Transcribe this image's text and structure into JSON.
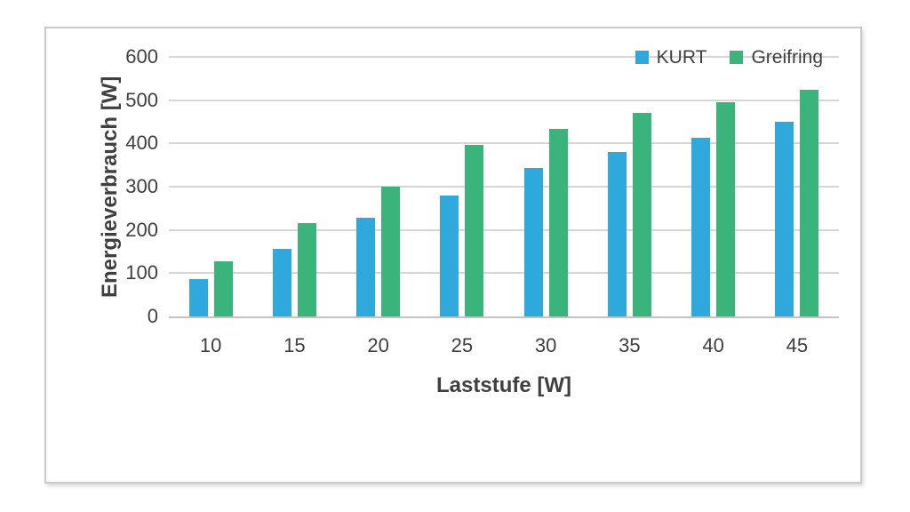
{
  "chart_data": {
    "type": "bar",
    "title": "",
    "categories": [
      "10",
      "15",
      "20",
      "25",
      "30",
      "35",
      "40",
      "45"
    ],
    "series": [
      {
        "name": "KURT",
        "color": "#2FA9DC",
        "values": [
          87,
          156,
          228,
          279,
          344,
          381,
          414,
          450
        ]
      },
      {
        "name": "Greifring",
        "color": "#3BB47B",
        "values": [
          127,
          216,
          300,
          397,
          434,
          470,
          496,
          523
        ]
      }
    ],
    "xlabel": "Laststufe [W]",
    "ylabel": "Energieverbrauch [W]",
    "ylim": [
      0,
      600
    ],
    "yticks": [
      0,
      100,
      200,
      300,
      400,
      500,
      600
    ],
    "grid": true,
    "legend_position": "top-right"
  },
  "colors": {
    "text": "#3F3F3F",
    "gridline": "#D6D6D6",
    "axis_line": "#C3C3C3",
    "frame_border": "#CACACA",
    "background": "#FFFFFF",
    "series_kurt": "#2FA9DC",
    "series_greifring": "#3BB47B"
  }
}
